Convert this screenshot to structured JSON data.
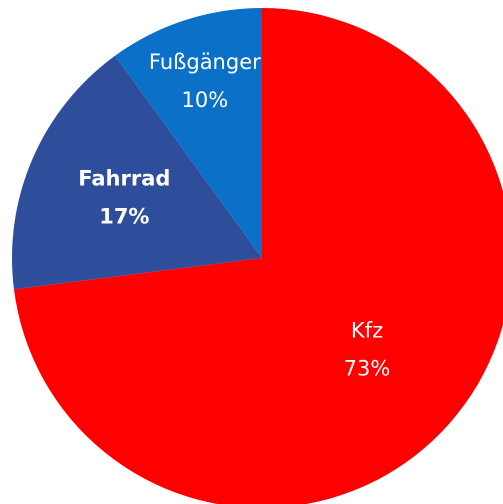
{
  "chart_data": {
    "type": "pie",
    "categories": [
      "Kfz",
      "Fahrrad",
      "Fußgänger"
    ],
    "values": [
      73,
      17,
      10
    ],
    "value_labels": [
      "73%",
      "17%",
      "10%"
    ],
    "colors": [
      "#ff0000",
      "#2e4d9b",
      "#0a70c8"
    ]
  }
}
